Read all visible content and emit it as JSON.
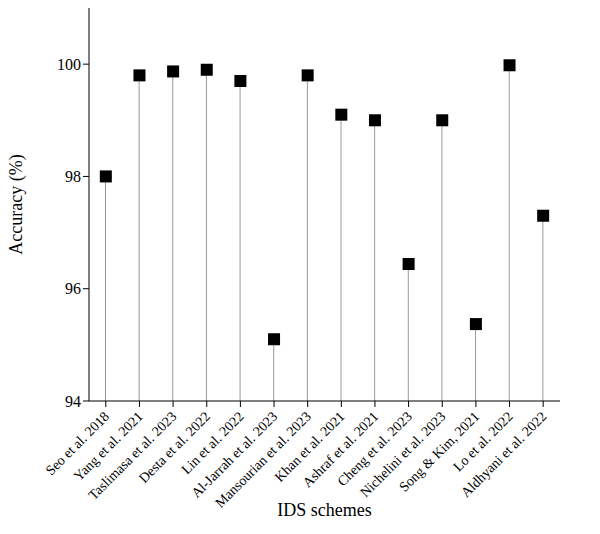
{
  "chart_data": {
    "type": "lollipop",
    "x_label": "IDS schemes",
    "y_label": "Accuracy (%)",
    "categories": [
      "Seo et al. 2018",
      "Yang et al. 2021",
      "Taslimasa et al. 2023",
      "Desta et al. 2022",
      "Lin et al. 2022",
      "Al-Jarrah et al. 2023",
      "Mansourian et al. 2023",
      "Khan et al. 2021",
      "Ashraf et al. 2021",
      "Cheng et al. 2023",
      "Nichelini et al. 2023",
      "Song & Kim, 2021",
      "Lo et al. 2022",
      "Aldhyani et al. 2022"
    ],
    "values": [
      98.0,
      99.8,
      99.87,
      99.9,
      99.7,
      95.1,
      99.8,
      99.1,
      99.0,
      96.44,
      99.0,
      95.37,
      99.98,
      97.3
    ],
    "color": "#000000",
    "marker": "square",
    "ylim": [
      94,
      101
    ],
    "yticks": [
      94,
      96,
      98,
      100
    ],
    "grid": false
  }
}
